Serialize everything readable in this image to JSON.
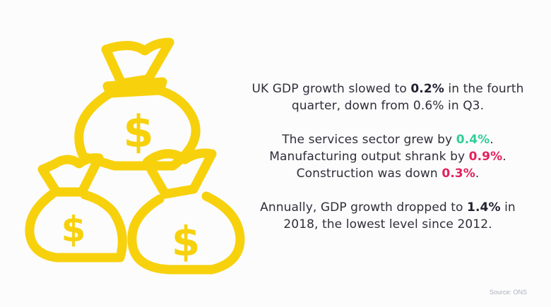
{
  "colors": {
    "background": "#fcfcfc",
    "bag_stroke": "#f7d10c",
    "text": "#2f2f3a",
    "highlight_green": "#2fcf98",
    "highlight_pink": "#e4205c",
    "source_text": "#aab0bc"
  },
  "illustration": {
    "icon": "money-bags-icon",
    "bag_symbol": "$"
  },
  "paragraph1": {
    "line1_pre": "UK GDP growth slowed to ",
    "line1_value": "0.2%",
    "line1_post": " in the fourth",
    "line2": "quarter, down from 0.6% in Q3."
  },
  "paragraph2": {
    "line1_pre": "The services sector grew by ",
    "line1_value": "0.4%",
    "line1_post": ".",
    "line2_pre": "Manufacturing output shrank by ",
    "line2_value": "0.9%",
    "line2_post": ".",
    "line3_pre": "Construction was down ",
    "line3_value": "0.3%",
    "line3_post": "."
  },
  "paragraph3": {
    "line1_pre": "Annually, GDP growth dropped to ",
    "line1_value": "1.4%",
    "line1_post": " in",
    "line2": "2018, the lowest level since 2012."
  },
  "source": "Source: ONS"
}
